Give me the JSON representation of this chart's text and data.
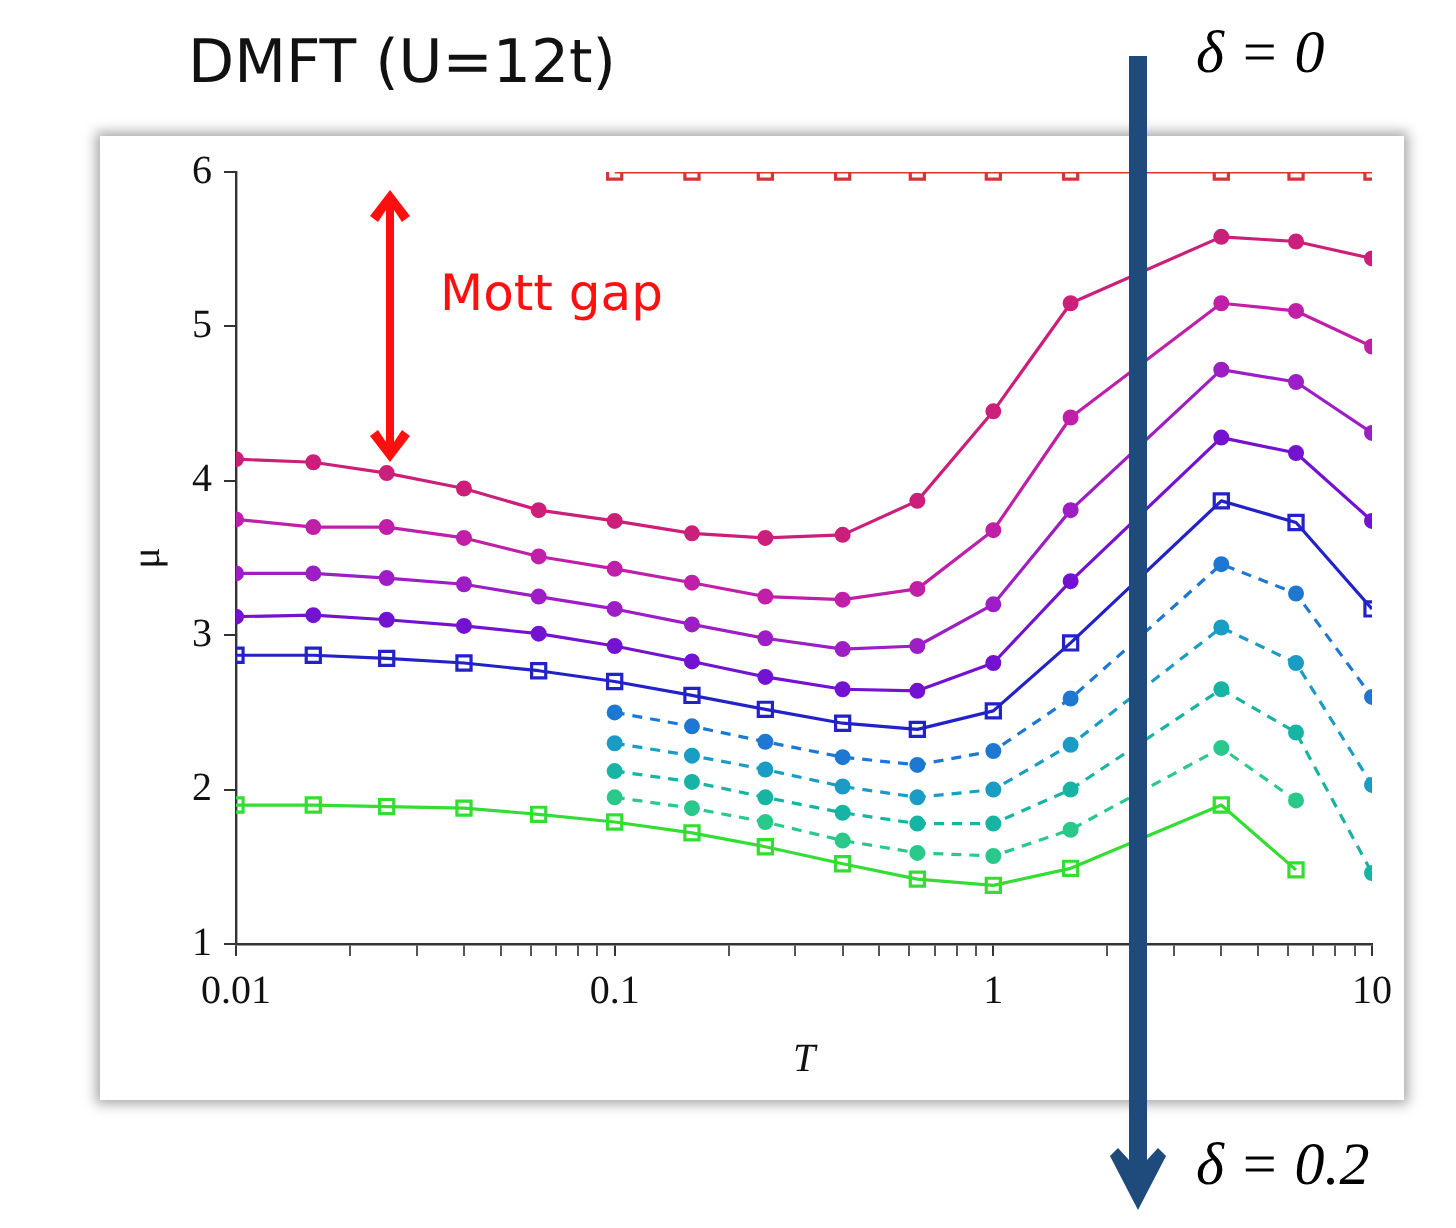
{
  "chart_data": {
    "type": "line",
    "title": "DMFT (U=12t)",
    "xlabel": "T",
    "ylabel": "μ",
    "log": "x",
    "x": [
      0.01,
      0.016,
      0.025,
      0.04,
      0.063,
      0.1,
      0.16,
      0.25,
      0.4,
      0.63,
      1,
      1.6,
      2.5,
      4,
      6.3,
      10
    ],
    "xlim": [
      0.01,
      10
    ],
    "xticks": [
      0.01,
      {
        "value": 0.02,
        "label": null
      },
      {
        "value": 0.03,
        "label": null
      },
      {
        "value": 0.04,
        "label": null
      },
      {
        "value": 0.05,
        "label": null
      },
      {
        "value": 0.06,
        "label": null
      },
      {
        "value": 0.07,
        "label": null
      },
      {
        "value": 0.08,
        "label": null
      },
      {
        "value": 0.09,
        "label": null
      },
      0.1,
      {
        "value": 0.2,
        "label": null
      },
      {
        "value": 0.3,
        "label": null
      },
      {
        "value": 0.4,
        "label": null
      },
      {
        "value": 0.5,
        "label": null
      },
      {
        "value": 0.6,
        "label": null
      },
      {
        "value": 0.7,
        "label": null
      },
      {
        "value": 0.8,
        "label": null
      },
      {
        "value": 0.9,
        "label": null
      },
      1,
      {
        "value": 2,
        "label": null
      },
      {
        "value": 3,
        "label": null
      },
      {
        "value": 4,
        "label": null
      },
      {
        "value": 5,
        "label": null
      },
      {
        "value": 6,
        "label": null
      },
      {
        "value": 7,
        "label": null
      },
      {
        "value": 8,
        "label": null
      },
      {
        "value": 9,
        "label": null
      },
      10
    ],
    "ylim": [
      1,
      6
    ],
    "yticks": [
      1,
      2,
      3,
      4,
      5,
      6
    ],
    "grid": false,
    "legend": false,
    "series": [
      {
        "color": "#cc1f7a",
        "marker": "circle",
        "line_style": "solid",
        "values": [
          4.14,
          4.12,
          4.05,
          3.95,
          3.81,
          3.74,
          3.66,
          3.63,
          3.65,
          3.87,
          4.45,
          5.15,
          null,
          5.58,
          5.55,
          5.44
        ]
      },
      {
        "color": "#c01fa8",
        "marker": "circle",
        "line_style": "solid",
        "values": [
          3.75,
          3.7,
          3.7,
          3.63,
          3.51,
          3.43,
          3.34,
          3.25,
          3.23,
          3.3,
          3.68,
          4.41,
          null,
          5.15,
          5.1,
          4.87
        ]
      },
      {
        "color": "#9d1ec4",
        "marker": "circle",
        "line_style": "solid",
        "values": [
          3.4,
          3.4,
          3.37,
          3.33,
          3.25,
          3.17,
          3.07,
          2.98,
          2.91,
          2.93,
          3.2,
          3.81,
          null,
          4.72,
          4.64,
          4.31
        ]
      },
      {
        "color": "#7412d2",
        "marker": "circle",
        "line_style": "solid",
        "values": [
          3.12,
          3.13,
          3.1,
          3.06,
          3.01,
          2.93,
          2.83,
          2.73,
          2.65,
          2.64,
          2.82,
          3.35,
          null,
          4.28,
          4.18,
          3.74
        ]
      },
      {
        "color": "#2222c8",
        "marker": "square",
        "line_style": "solid",
        "values": [
          2.87,
          2.87,
          2.85,
          2.82,
          2.77,
          2.7,
          2.61,
          2.52,
          2.43,
          2.39,
          2.51,
          2.95,
          null,
          3.87,
          3.73,
          3.17
        ]
      },
      {
        "color": "#1e78d2",
        "marker": "circle",
        "line_style": "dashed",
        "values": [
          null,
          null,
          null,
          null,
          null,
          2.5,
          2.41,
          2.31,
          2.21,
          2.16,
          2.25,
          2.59,
          null,
          3.46,
          3.27,
          2.6
        ]
      },
      {
        "color": "#1a9cc4",
        "marker": "circle",
        "line_style": "dashed",
        "values": [
          null,
          null,
          null,
          null,
          null,
          2.3,
          2.22,
          2.13,
          2.02,
          1.95,
          2.0,
          2.29,
          null,
          3.05,
          2.82,
          2.03
        ]
      },
      {
        "color": "#17b4a4",
        "marker": "circle",
        "line_style": "dashed",
        "values": [
          null,
          null,
          null,
          null,
          null,
          2.12,
          2.05,
          1.95,
          1.85,
          1.78,
          1.78,
          2.0,
          null,
          2.65,
          2.37,
          1.46
        ]
      },
      {
        "color": "#2ac88a",
        "marker": "circle",
        "line_style": "dashed",
        "values": [
          null,
          null,
          null,
          null,
          null,
          1.95,
          1.88,
          1.79,
          1.67,
          1.59,
          1.57,
          1.74,
          null,
          2.27,
          1.93,
          null
        ]
      },
      {
        "color": "#33dd33",
        "marker": "square",
        "line_style": "solid",
        "values": [
          1.9,
          1.9,
          1.89,
          1.88,
          1.84,
          1.79,
          1.72,
          1.63,
          1.52,
          1.42,
          1.38,
          1.49,
          null,
          1.9,
          1.48,
          null
        ]
      },
      {
        "color": "#d43535",
        "marker": "square",
        "line_style": "solid",
        "values": [
          null,
          null,
          null,
          null,
          null,
          6,
          6,
          6,
          6,
          6,
          6,
          6,
          null,
          6,
          6,
          6
        ]
      }
    ],
    "annotations": [
      "Mott gap",
      "δ = 0",
      "δ = 0.2"
    ]
  }
}
